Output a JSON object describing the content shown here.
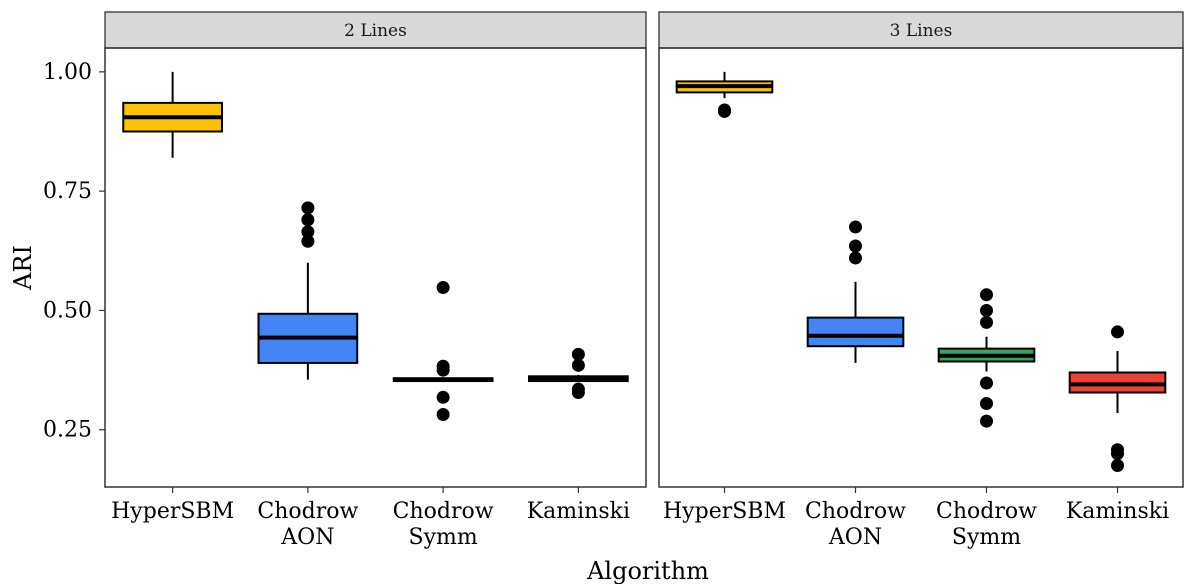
{
  "chart_data": {
    "type": "boxplot",
    "xlabel": "Algorithm",
    "ylabel": "ARI",
    "ylim": [
      0.13,
      1.05
    ],
    "yticks": [
      0.25,
      0.5,
      0.75,
      1.0
    ],
    "ytick_labels": [
      "0.25",
      "0.50",
      "0.75",
      "1.00"
    ],
    "grid": false,
    "categories": [
      {
        "lines": [
          "HyperSBM"
        ],
        "color": "#FFC000"
      },
      {
        "lines": [
          "Chodrow",
          "AON"
        ],
        "color": "#4285F4"
      },
      {
        "lines": [
          "Chodrow",
          "Symm"
        ],
        "color": "#34A853"
      },
      {
        "lines": [
          "Kaminski"
        ],
        "color": "#EA4335"
      }
    ],
    "panels": [
      {
        "title": "2 Lines",
        "boxes": [
          {
            "min": 0.82,
            "q1": 0.875,
            "median": 0.905,
            "q3": 0.935,
            "max": 1.0,
            "outliers": []
          },
          {
            "min": 0.355,
            "q1": 0.39,
            "median": 0.443,
            "q3": 0.493,
            "max": 0.6,
            "outliers": [
              0.715,
              0.69,
              0.665,
              0.645
            ]
          },
          {
            "min": 0.352,
            "q1": 0.352,
            "median": 0.355,
            "q3": 0.358,
            "max": 0.36,
            "outliers": [
              0.548,
              0.383,
              0.375,
              0.318,
              0.282
            ]
          },
          {
            "min": 0.352,
            "q1": 0.352,
            "median": 0.358,
            "q3": 0.362,
            "max": 0.365,
            "outliers": [
              0.408,
              0.385,
              0.335,
              0.328
            ]
          }
        ]
      },
      {
        "title": "3 Lines",
        "boxes": [
          {
            "min": 0.945,
            "q1": 0.957,
            "median": 0.97,
            "q3": 0.98,
            "max": 1.0,
            "outliers": [
              0.92,
              0.917
            ]
          },
          {
            "min": 0.39,
            "q1": 0.425,
            "median": 0.447,
            "q3": 0.485,
            "max": 0.56,
            "outliers": [
              0.675,
              0.635,
              0.61
            ]
          },
          {
            "min": 0.372,
            "q1": 0.393,
            "median": 0.405,
            "q3": 0.42,
            "max": 0.445,
            "outliers": [
              0.533,
              0.5,
              0.475,
              0.348,
              0.305,
              0.268
            ]
          },
          {
            "min": 0.285,
            "q1": 0.328,
            "median": 0.345,
            "q3": 0.37,
            "max": 0.415,
            "outliers": [
              0.455,
              0.208,
              0.2,
              0.175
            ]
          }
        ]
      }
    ]
  }
}
